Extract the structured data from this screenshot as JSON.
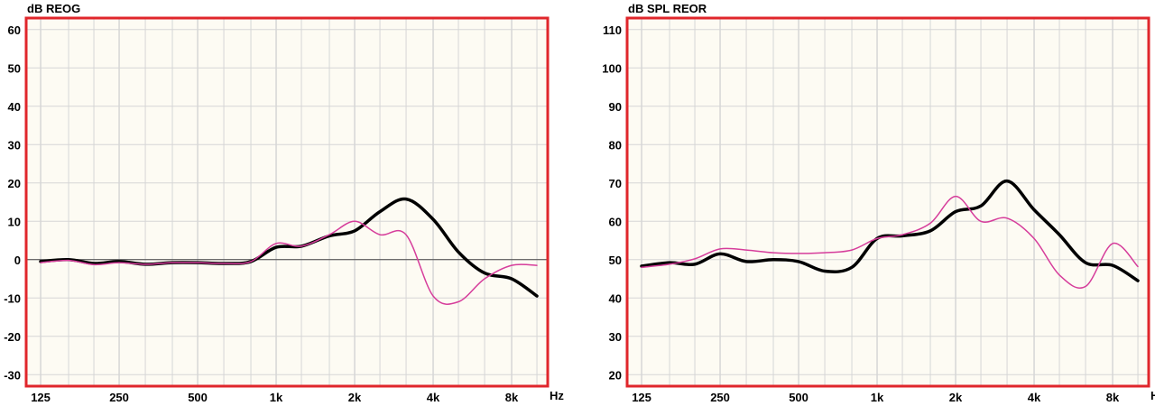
{
  "colors": {
    "plot_bg": "#fdfbf3",
    "grid": "#d6d6d6",
    "frame": "#e0262b",
    "measured": "#000000",
    "target": "#d63d9b",
    "zero_line": "#444444"
  },
  "chart_data": [
    {
      "type": "line",
      "title": "dB REOG",
      "xunit": "Hz",
      "xscale": "log",
      "xlim": [
        110,
        11000
      ],
      "ylim": [
        -33,
        63
      ],
      "yticks": [
        -30,
        -20,
        -10,
        0,
        10,
        20,
        30,
        40,
        50,
        60
      ],
      "ytick_labels": [
        "-30",
        "-20",
        "-10",
        "0",
        "10",
        "20",
        "30",
        "40",
        "50",
        "60"
      ],
      "xticks": [
        125,
        250,
        500,
        1000,
        2000,
        4000,
        8000
      ],
      "xtick_labels": [
        "125",
        "250",
        "500",
        "1k",
        "2k",
        "4k",
        "8k"
      ],
      "grid": true,
      "series": [
        {
          "color": "#000000",
          "width": 3.5,
          "x": [
            125,
            160,
            200,
            250,
            315,
            400,
            500,
            630,
            800,
            1000,
            1250,
            1600,
            2000,
            2500,
            3150,
            4000,
            5000,
            6300,
            8000,
            10000
          ],
          "y": [
            -0.5,
            0,
            -1,
            -0.5,
            -1.2,
            -0.8,
            -0.8,
            -1,
            -0.5,
            3.2,
            3.5,
            6.2,
            7.5,
            12.5,
            15.8,
            10.5,
            2,
            -3.5,
            -5,
            -9.5
          ]
        },
        {
          "color": "#d63d9b",
          "width": 1.5,
          "x": [
            125,
            160,
            200,
            250,
            315,
            400,
            500,
            630,
            800,
            1000,
            1250,
            1600,
            2000,
            2500,
            3150,
            4000,
            5000,
            6300,
            8000,
            10000
          ],
          "y": [
            -0.8,
            -0.2,
            -1.3,
            -0.8,
            -1.2,
            -0.8,
            -0.8,
            -1,
            -0.5,
            4.2,
            3.5,
            6.5,
            10,
            6.5,
            6.5,
            -9.5,
            -11,
            -5,
            -1.5,
            -1.5
          ]
        }
      ],
      "zero_line": 0
    },
    {
      "type": "line",
      "title": "dB SPL REOR",
      "xunit": "Hz",
      "xscale": "log",
      "xlim": [
        110,
        11000
      ],
      "ylim": [
        17,
        113
      ],
      "yticks": [
        20,
        30,
        40,
        50,
        60,
        70,
        80,
        90,
        100,
        110
      ],
      "ytick_labels": [
        "20",
        "30",
        "40",
        "50",
        "60",
        "70",
        "80",
        "90",
        "100",
        "110"
      ],
      "xticks": [
        125,
        250,
        500,
        1000,
        2000,
        4000,
        8000
      ],
      "xtick_labels": [
        "125",
        "250",
        "500",
        "1k",
        "2k",
        "4k",
        "8k"
      ],
      "grid": true,
      "series": [
        {
          "color": "#000000",
          "width": 3.5,
          "x": [
            125,
            160,
            200,
            250,
            315,
            400,
            500,
            630,
            800,
            1000,
            1250,
            1600,
            2000,
            2500,
            3150,
            4000,
            5000,
            6300,
            8000,
            10000
          ],
          "y": [
            48.3,
            49.2,
            48.8,
            51.5,
            49.5,
            50,
            49.5,
            47,
            48,
            55.5,
            56.2,
            57.5,
            62.5,
            64,
            70.5,
            63,
            56.5,
            49.2,
            48.5,
            44.5
          ]
        },
        {
          "color": "#d63d9b",
          "width": 1.5,
          "x": [
            125,
            160,
            200,
            250,
            315,
            400,
            500,
            630,
            800,
            1000,
            1250,
            1600,
            2000,
            2500,
            3150,
            4000,
            5000,
            6300,
            8000,
            10000
          ],
          "y": [
            48,
            48.8,
            50.2,
            52.8,
            52.5,
            51.8,
            51.6,
            51.8,
            52.5,
            55.5,
            56.5,
            59.5,
            66.5,
            60,
            60.8,
            55.5,
            46,
            43,
            54.2,
            48.2
          ]
        }
      ]
    }
  ]
}
